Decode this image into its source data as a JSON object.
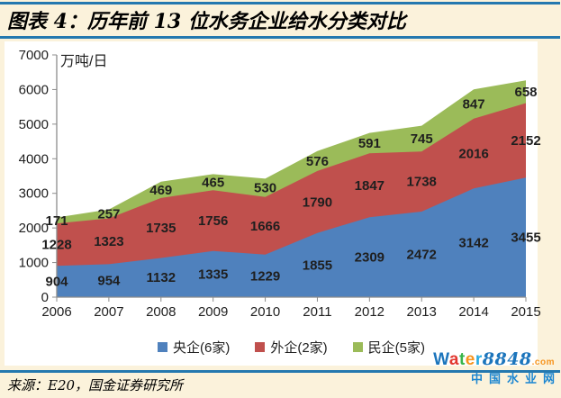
{
  "header": {
    "title": "图表 4：历年前 13 位水务企业给水分类对比"
  },
  "chart_data": {
    "type": "area",
    "stacked": true,
    "title": "历年前13位水务企业给水分类对比",
    "unit_label": "万吨/日",
    "categories": [
      "2006",
      "2007",
      "2008",
      "2009",
      "2010",
      "2011",
      "2012",
      "2013",
      "2014",
      "2015"
    ],
    "series": [
      {
        "name": "央企(6家)",
        "color": "#4F81BD",
        "values": [
          904,
          954,
          1132,
          1335,
          1229,
          1855,
          2309,
          2472,
          3142,
          3455
        ]
      },
      {
        "name": "外企(2家)",
        "color": "#C0504D",
        "values": [
          1228,
          1323,
          1735,
          1756,
          1666,
          1790,
          1847,
          1738,
          2016,
          2152
        ]
      },
      {
        "name": "民企(5家)",
        "color": "#9BBB59",
        "values": [
          171,
          257,
          469,
          465,
          530,
          576,
          591,
          745,
          847,
          658
        ]
      }
    ],
    "ylim": [
      0,
      7000
    ],
    "ytick_step": 1000,
    "grid": false,
    "legend_position": "bottom",
    "data_labels": true,
    "axis_color": "#8C8C8C"
  },
  "footer": {
    "source_label": "来源：E20，国金证券研究所"
  },
  "logo": {
    "brand_letters": [
      {
        "ch": "W",
        "color": "#1C75BC"
      },
      {
        "ch": "a",
        "color": "#E2372F"
      },
      {
        "ch": "t",
        "color": "#39B54A"
      },
      {
        "ch": "e",
        "color": "#F7941E"
      },
      {
        "ch": "r",
        "color": "#27AAE1"
      }
    ],
    "brand_number": "8848",
    "brand_number_color": "#1C75BC",
    "domain_suffix": ".com",
    "domain_suffix_color": "#F7941E",
    "subtitle": "中国水业网",
    "subtitle_color": "#1C86D1"
  },
  "theme": {
    "page_background": "#FBF2DB",
    "rule_color": "#2478AF",
    "plot_background": "#FFFFFF"
  }
}
